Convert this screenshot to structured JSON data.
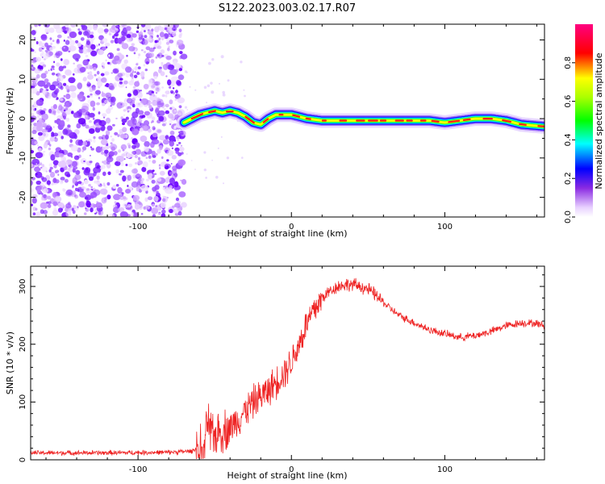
{
  "title": "S122.2023.003.02.17.R07",
  "chart_data": [
    {
      "type": "heatmap",
      "xlabel": "Height of straight line (km)",
      "ylabel": "Frequency (Hz)",
      "xlim": [
        -170,
        165
      ],
      "ylim": [
        -25,
        24
      ],
      "xticks": [
        -100,
        0,
        100
      ],
      "yticks": [
        -20,
        -10,
        0,
        10,
        20
      ],
      "grid": false,
      "noise_region_x": [
        -170,
        -70
      ],
      "ridge": {
        "x": [
          -70,
          -65,
          -60,
          -55,
          -50,
          -45,
          -40,
          -35,
          -30,
          -25,
          -20,
          -15,
          -10,
          -5,
          0,
          10,
          20,
          30,
          40,
          50,
          60,
          70,
          80,
          90,
          100,
          110,
          120,
          130,
          140,
          150,
          165
        ],
        "y": [
          -1,
          0,
          1,
          1.5,
          2,
          1.5,
          2,
          1.5,
          0.5,
          -1,
          -1.5,
          0,
          1,
          1,
          1,
          0,
          -0.5,
          -0.5,
          -0.5,
          -0.5,
          -0.5,
          -0.5,
          -0.5,
          -0.5,
          -1,
          -0.5,
          0,
          0,
          -0.5,
          -1.5,
          -2
        ]
      },
      "colorbar": {
        "label": "Normalized spectral amplitude",
        "ticks": [
          "0.0",
          "0.2",
          "0.4",
          "0.6",
          "0.8"
        ],
        "range": [
          0,
          1
        ]
      }
    },
    {
      "type": "line",
      "xlabel": "Height of straight line (km)",
      "ylabel": "SNR (10 * v/v)",
      "xlim": [
        -170,
        165
      ],
      "ylim": [
        0,
        335
      ],
      "xticks": [
        -100,
        0,
        100
      ],
      "yticks": [
        0,
        100,
        200,
        300
      ],
      "grid": false,
      "series_color": "#ee2222",
      "series": [
        {
          "x": [
            -170,
            -120,
            -80,
            -65,
            -58,
            -55,
            -52,
            -50,
            -45,
            -40,
            -35,
            -30,
            -25,
            -20,
            -15,
            -10,
            -5,
            0,
            5,
            10,
            15,
            20,
            25,
            30,
            35,
            40,
            45,
            50,
            55,
            60,
            70,
            80,
            90,
            100,
            110,
            120,
            130,
            140,
            150,
            160,
            165
          ],
          "y": [
            12,
            12,
            13,
            15,
            25,
            60,
            55,
            45,
            50,
            55,
            70,
            85,
            100,
            110,
            120,
            135,
            150,
            170,
            200,
            235,
            260,
            280,
            292,
            300,
            303,
            303,
            300,
            295,
            285,
            272,
            250,
            237,
            225,
            218,
            212,
            215,
            222,
            232,
            237,
            236,
            232
          ]
        }
      ]
    }
  ]
}
